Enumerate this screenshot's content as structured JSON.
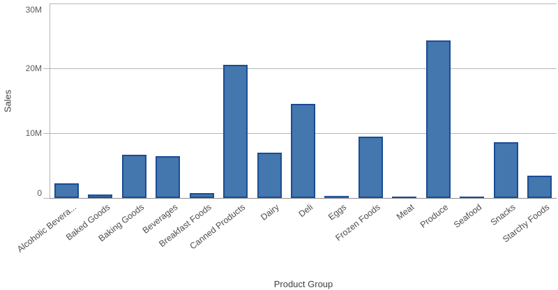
{
  "chart_data": {
    "type": "bar",
    "title": "",
    "xlabel": "Product Group",
    "ylabel": "Sales",
    "unit": "M",
    "categories": [
      "Alcoholic Bevera...",
      "Baked Goods",
      "Baking Goods",
      "Beverages",
      "Breakfast Foods",
      "Canned Products",
      "Dairy",
      "Deli",
      "Eggs",
      "Frozen Foods",
      "Meat",
      "Produce",
      "Seafood",
      "Snacks",
      "Starchy Foods"
    ],
    "values": [
      2.3,
      0.5,
      6.7,
      6.4,
      0.7,
      20.5,
      7.0,
      14.5,
      0.3,
      9.5,
      0.2,
      24.3,
      0.2,
      8.6,
      3.4
    ],
    "ylim": [
      0,
      30
    ],
    "yticks": [
      {
        "value": 0,
        "label": "0"
      },
      {
        "value": 10,
        "label": "10M"
      },
      {
        "value": 20,
        "label": "20M"
      },
      {
        "value": 30,
        "label": "30M"
      }
    ],
    "grid": true,
    "legend": false,
    "colors": {
      "bar_fill": "#4377ad",
      "bar_border": "#1a4c96",
      "gridline": "#b5b5b5",
      "axis": "#b5b5b5",
      "baseline": "#8f8f8f",
      "tick_text": "#595959",
      "category_text": "#4d4d4d",
      "title_text": "#404040",
      "background": "#ffffff"
    }
  }
}
